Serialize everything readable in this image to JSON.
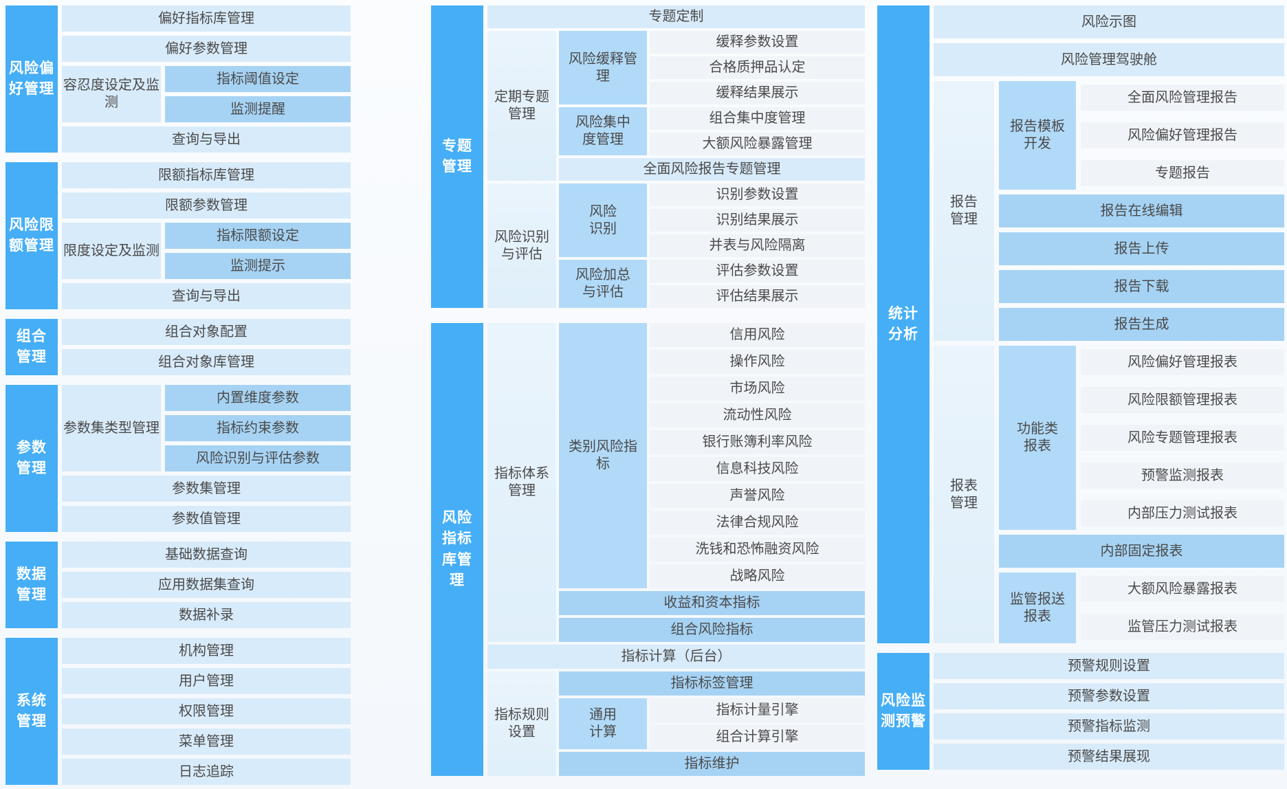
{
  "colors": {
    "category_block": "#45AEF6",
    "row_light_blue": "#D8EBFA",
    "row_medium_blue": "#A6D3F4",
    "label_medium_blue": "#B1DAF8",
    "level2_pale_blue": "#E6F2FB",
    "leaf_gray": "#F0F4F8",
    "text_dark": "#4a4a4a",
    "text_category": "#ffffff"
  },
  "groups": {
    "preference": {
      "category": "风险偏\n好管理",
      "items": {
        "lib": "偏好指标库管理",
        "param": "偏好参数管理",
        "tolerance": "容忍度设定及监\n测",
        "threshold": "指标阈值设定",
        "monitor_alert": "监测提醒",
        "query": "查询与导出"
      }
    },
    "limit": {
      "category": "风险限\n额管理",
      "items": {
        "lib": "限额指标库管理",
        "param": "限额参数管理",
        "setting": "限度设定及监测",
        "limit_set": "指标限额设定",
        "monitor_tip": "监测提示",
        "query": "查询与导出"
      }
    },
    "portfolio": {
      "category": "组合\n管理",
      "items": {
        "config": "组合对象配置",
        "lib": "组合对象库管理"
      }
    },
    "parameter": {
      "category": "参数\n管理",
      "items": {
        "type_mgmt": "参数集类型管理",
        "dim": "内置维度参数",
        "constraint": "指标约束参数",
        "ident_eval": "风险识别与评估参数",
        "set_mgmt": "参数集管理",
        "value_mgmt": "参数值管理"
      }
    },
    "data": {
      "category": "数据\n管理",
      "items": {
        "basic": "基础数据查询",
        "applied": "应用数据集查询",
        "supplement": "数据补录"
      }
    },
    "system": {
      "category": "系统\n管理",
      "items": {
        "org": "机构管理",
        "user": "用户管理",
        "perm": "权限管理",
        "menu": "菜单管理",
        "log": "日志追踪"
      }
    },
    "special": {
      "category": "专题\n管理",
      "items": {
        "custom": "专题定制",
        "periodic": "定期专题\n管理",
        "mitigation": "风险缓释管\n理",
        "mitigation_param": "缓释参数设置",
        "collateral": "合格质押品认定",
        "mitigation_result": "缓释结果展示",
        "concentration": "风险集中\n度管理",
        "portfolio_conc": "组合集中度管理",
        "large_exposure": "大额风险暴露管理",
        "report_special": "全面风险报告专题管理",
        "ident_eval": "风险识别\n与评估",
        "identification": "风险\n识别",
        "ident_param": "识别参数设置",
        "ident_result": "识别结果展示",
        "consolidation": "并表与风险隔离",
        "aggregation": "风险加总\n与评估",
        "eval_param": "评估参数设置",
        "eval_result": "评估结果展示"
      }
    },
    "indicator": {
      "category": "风险\n指标\n库管\n理",
      "items": {
        "system_mgmt": "指标体系\n管理",
        "category_ind": "类别风险指\n标",
        "credit": "信用风险",
        "operational": "操作风险",
        "market": "市场风险",
        "liquidity": "流动性风险",
        "irrbb": "银行账簿利率风险",
        "it": "信息科技风险",
        "reputation": "声誉风险",
        "compliance": "法律合规风险",
        "aml": "洗钱和恐怖融资风险",
        "strategic": "战略风险",
        "income_capital": "收益和资本指标",
        "portfolio_ind": "组合风险指标",
        "calc_backend": "指标计算（后台）",
        "rule_setting": "指标规则\n设置",
        "tag_mgmt": "指标标签管理",
        "general_calc": "通用\n计算",
        "measure_engine": "指标计量引擎",
        "portfolio_engine": "组合计算引擎",
        "maintenance": "指标维护"
      }
    },
    "statistics": {
      "category": "统计\n分析",
      "items": {
        "risk_chart": "风险示图",
        "cockpit": "风险管理驾驶舱",
        "report_mgmt": "报告\n管理",
        "template_dev": "报告模板\n开发",
        "comprehensive_report": "全面风险管理报告",
        "preference_report": "风险偏好管理报告",
        "special_report": "专题报告",
        "online_edit": "报告在线编辑",
        "upload": "报告上传",
        "download": "报告下载",
        "generate": "报告生成",
        "sheet_mgmt": "报表\n管理",
        "functional": "功能类\n报表",
        "pref_sheet": "风险偏好管理报表",
        "limit_sheet": "风险限额管理报表",
        "special_sheet": "风险专题管理报表",
        "warning_sheet": "预警监测报表",
        "stress_sheet": "内部压力测试报表",
        "fixed_sheet": "内部固定报表",
        "regulatory": "监管报送\n报表",
        "exposure_sheet": "大额风险暴露报表",
        "reg_stress_sheet": "监管压力测试报表"
      }
    },
    "warning": {
      "category": "风险监\n测预警",
      "items": {
        "rule": "预警规则设置",
        "param": "预警参数设置",
        "monitor": "预警指标监测",
        "display": "预警结果展现"
      }
    }
  }
}
